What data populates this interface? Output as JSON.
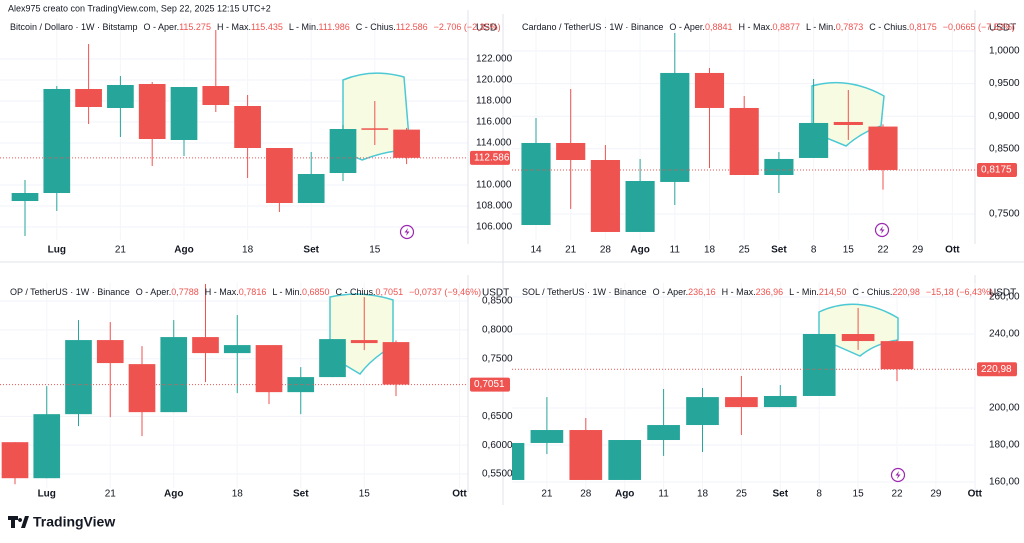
{
  "header": {
    "text": "Alex975 creato con TradingView.com, Sep 22, 2025 12:15 UTC+2"
  },
  "footer": {
    "brand": "TradingView"
  },
  "chart_data": [
    {
      "type": "candlestick",
      "title": "Bitcoin / Dollaro · 1W · Bitstamp",
      "ohlc_labels": [
        "O - Aper.",
        "H - Max.",
        "L - Min.",
        "C - Chius."
      ],
      "ohlc_values": [
        "115.275",
        "115.435",
        "111.986",
        "112.586"
      ],
      "change": "−2.706 (−2,35%)",
      "y_unit": "USD",
      "up_color": "#26a69a",
      "down_color": "#ef5350",
      "categories": [
        null,
        "Lug",
        null,
        "21",
        null,
        "Ago",
        null,
        "18",
        null,
        "Set",
        null,
        "15",
        null
      ],
      "open": [
        108476,
        109238,
        119143,
        117333,
        119619,
        114286,
        119429,
        117524,
        113524,
        108286,
        111143,
        115400,
        115275
      ],
      "high": [
        110476,
        119429,
        123429,
        120381,
        119810,
        119333,
        124762,
        118571,
        113524,
        113143,
        115714,
        118000,
        115435
      ],
      "low": [
        105143,
        107524,
        115810,
        114571,
        111810,
        112762,
        116952,
        110667,
        107429,
        108286,
        110381,
        113810,
        111986
      ],
      "close": [
        109238,
        119143,
        117429,
        119524,
        114381,
        119333,
        117619,
        113524,
        108286,
        111048,
        115333,
        115275,
        112586
      ],
      "ylim": [
        104762,
        125905
      ],
      "yticks": [
        {
          "value": 122000,
          "label": "122.000"
        },
        {
          "value": 120000,
          "label": "120.000"
        },
        {
          "value": 118000,
          "label": "118.000"
        },
        {
          "value": 116000,
          "label": "116.000"
        },
        {
          "value": 114000,
          "label": "114.000"
        },
        {
          "value": 110000,
          "label": "110.000"
        },
        {
          "value": 108000,
          "label": "108.000"
        },
        {
          "value": 106000,
          "label": "106.000"
        }
      ],
      "last_price": {
        "value": 112586,
        "label": "112.586"
      }
    },
    {
      "type": "candlestick",
      "title": "Cardano / TetherUS · 1W · Binance",
      "ohlc_labels": [
        "O - Aper.",
        "H - Max.",
        "L - Min.",
        "C - Chius."
      ],
      "ohlc_values": [
        "0,8841",
        "0,8877",
        "0,7873",
        "0,8175"
      ],
      "change": "−0,0665 (−7,52%)",
      "y_unit": "USDT",
      "up_color": "#26a69a",
      "down_color": "#ef5350",
      "categories": [
        "14",
        "21",
        "28",
        "Ago",
        "11",
        "18",
        "25",
        "Set",
        "8",
        "15",
        "22",
        "29",
        "Ott"
      ],
      "open": [
        0.7331,
        0.8589,
        0.8328,
        0.7224,
        0.7991,
        0.9663,
        0.9126,
        0.8098,
        0.8359,
        0.8911,
        0.8841,
        null,
        null
      ],
      "high": [
        0.8972,
        0.9417,
        0.8558,
        0.8344,
        1.0276,
        0.9739,
        0.931,
        0.845,
        0.9571,
        0.9402,
        0.8877,
        null,
        null
      ],
      "low": [
        0.7331,
        0.7577,
        0.7224,
        0.7224,
        0.7638,
        0.8206,
        0.8098,
        0.7822,
        0.8359,
        0.8635,
        0.7873,
        null,
        null
      ],
      "close": [
        0.8589,
        0.8328,
        0.7224,
        0.8006,
        0.9663,
        0.9126,
        0.8098,
        0.8344,
        0.8896,
        0.8865,
        0.8175,
        null,
        null
      ],
      "ylim": [
        0.7101,
        1.0506
      ],
      "yticks": [
        {
          "value": 1,
          "label": "1,0000"
        },
        {
          "value": 0.95,
          "label": "0,9500"
        },
        {
          "value": 0.9,
          "label": "0,9000"
        },
        {
          "value": 0.85,
          "label": "0,8500"
        },
        {
          "value": 0.75,
          "label": "0,7500"
        }
      ],
      "last_price": {
        "value": 0.8175,
        "label": "0,8175"
      }
    },
    {
      "type": "candlestick",
      "title": "OP / TetherUS · 1W · Binance",
      "ohlc_labels": [
        "O - Aper.",
        "H - Max.",
        "L - Min.",
        "C - Chius."
      ],
      "ohlc_values": [
        "0,7788",
        "0,7816",
        "0,6850",
        "0,7051"
      ],
      "change": "−0,0737 (−9,46%)",
      "y_unit": "USDT",
      "up_color": "#26a69a",
      "down_color": "#ef5350",
      "categories": [
        null,
        "Lug",
        null,
        "21",
        null,
        "Ago",
        null,
        "18",
        null,
        "Set",
        null,
        "15",
        null,
        null,
        "Ott"
      ],
      "open": [
        0.6052,
        0.5427,
        0.6538,
        0.7823,
        0.7406,
        0.6573,
        0.7875,
        0.7597,
        0.7736,
        0.692,
        0.7181,
        0.7823,
        0.7788,
        null,
        null
      ],
      "high": [
        0.6052,
        0.7024,
        0.817,
        0.8135,
        0.7719,
        0.817,
        0.8795,
        0.8257,
        0.7736,
        0.7354,
        0.784,
        0.8569,
        0.7816,
        null,
        null
      ],
      "low": [
        0.5323,
        0.5427,
        0.633,
        0.6486,
        0.6156,
        0.6573,
        0.7094,
        0.6903,
        0.6712,
        0.6538,
        0.7181,
        0.7649,
        0.685,
        null,
        null
      ],
      "close": [
        0.5427,
        0.6538,
        0.7823,
        0.7424,
        0.6573,
        0.7875,
        0.7597,
        0.7736,
        0.692,
        0.7181,
        0.784,
        0.7771,
        0.7051,
        null,
        null
      ],
      "ylim": [
        0.5257,
        0.8813
      ],
      "yticks": [
        {
          "value": 0.85,
          "label": "0,8500"
        },
        {
          "value": 0.8,
          "label": "0,8000"
        },
        {
          "value": 0.75,
          "label": "0,7500"
        },
        {
          "value": 0.65,
          "label": "0,6500"
        },
        {
          "value": 0.6,
          "label": "0,6000"
        },
        {
          "value": 0.55,
          "label": "0,5500"
        }
      ],
      "last_price": {
        "value": 0.7051,
        "label": "0,7051"
      }
    },
    {
      "type": "candlestick",
      "title": "SOL / TetherUS · 1W · Binance",
      "ohlc_labels": [
        "O - Aper.",
        "H - Max.",
        "L - Min.",
        "C - Chius."
      ],
      "ohlc_values": [
        "236,16",
        "236,96",
        "214,50",
        "220,98"
      ],
      "change": "−15,18 (−6,43%)",
      "y_unit": "USDT",
      "up_color": "#26a69a",
      "down_color": "#ef5350",
      "categories": [
        null,
        "21",
        "28",
        "Ago",
        "11",
        "18",
        "25",
        "Set",
        "8",
        "15",
        "22",
        "29",
        "Ott"
      ],
      "open": [
        161.1,
        181.1,
        188.1,
        161.1,
        182.7,
        190.8,
        205.9,
        200.5,
        206.5,
        240,
        236.16,
        null,
        null
      ],
      "high": [
        184.3,
        205.9,
        194.6,
        182.7,
        210.3,
        210.8,
        217.3,
        212.4,
        240,
        254.1,
        236.96,
        null,
        null
      ],
      "low": [
        161.1,
        175.1,
        161.1,
        161.1,
        174.1,
        176.2,
        185.4,
        200.5,
        206.5,
        231.4,
        214.5,
        null,
        null
      ],
      "close": [
        181.1,
        188.1,
        161.1,
        182.7,
        190.8,
        205.9,
        200.5,
        206.5,
        240,
        236.2,
        220.98,
        null,
        null
      ],
      "ylim": [
        155.68,
        267.57
      ],
      "yticks": [
        {
          "value": 260,
          "label": "260,00"
        },
        {
          "value": 240,
          "label": "240,00"
        },
        {
          "value": 200,
          "label": "200,00"
        },
        {
          "value": 180,
          "label": "180,00"
        },
        {
          "value": 160,
          "label": "160,00"
        }
      ],
      "last_price": {
        "value": 220.98,
        "label": "220,98"
      }
    }
  ]
}
